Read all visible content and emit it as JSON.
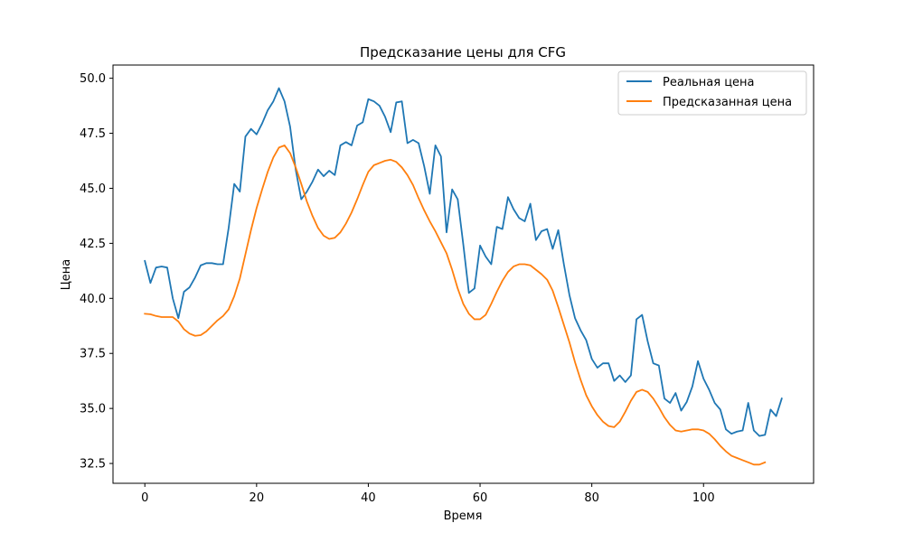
{
  "chart_data": {
    "type": "line",
    "title": "Предсказание цены для CFG",
    "xlabel": "Время",
    "ylabel": "Цена",
    "xlim": [
      -5.7,
      119.7
    ],
    "ylim": [
      31.6,
      50.6
    ],
    "xticks": [
      0,
      20,
      40,
      60,
      80,
      100
    ],
    "xtick_labels": [
      "0",
      "20",
      "40",
      "60",
      "80",
      "100"
    ],
    "yticks": [
      32.5,
      35.0,
      37.5,
      40.0,
      42.5,
      45.0,
      47.5,
      50.0
    ],
    "ytick_labels": [
      "32.5",
      "35.0",
      "37.5",
      "40.0",
      "42.5",
      "45.0",
      "47.5",
      "50.0"
    ],
    "grid": false,
    "legend_position": "top-right",
    "series": [
      {
        "name": "Реальная цена",
        "color": "#1f77b4",
        "values": [
          41.7,
          40.7,
          41.4,
          41.45,
          41.4,
          40.0,
          39.1,
          40.3,
          40.5,
          40.95,
          41.5,
          41.6,
          41.6,
          41.55,
          41.55,
          43.2,
          45.2,
          44.85,
          47.35,
          47.7,
          47.45,
          47.95,
          48.55,
          48.95,
          49.55,
          48.95,
          47.8,
          45.85,
          44.5,
          44.85,
          45.3,
          45.85,
          45.55,
          45.8,
          45.6,
          46.95,
          47.1,
          46.95,
          47.85,
          48.0,
          49.05,
          48.95,
          48.75,
          48.25,
          47.55,
          48.9,
          48.95,
          47.05,
          47.2,
          47.05,
          46.0,
          44.75,
          46.95,
          46.45,
          43.0,
          44.95,
          44.5,
          42.45,
          40.25,
          40.45,
          42.4,
          41.9,
          41.55,
          43.25,
          43.15,
          44.6,
          44.05,
          43.65,
          43.5,
          44.3,
          42.65,
          43.05,
          43.15,
          42.25,
          43.1,
          41.55,
          40.15,
          39.1,
          38.55,
          38.1,
          37.25,
          36.85,
          37.05,
          37.05,
          36.25,
          36.5,
          36.2,
          36.5,
          39.05,
          39.25,
          38.05,
          37.05,
          36.95,
          35.45,
          35.25,
          35.7,
          34.9,
          35.3,
          36.0,
          37.15,
          36.35,
          35.85,
          35.25,
          34.95,
          34.05,
          33.85,
          33.95,
          34.0,
          35.25,
          34.0,
          33.75,
          33.8,
          34.95,
          34.65,
          35.45
        ]
      },
      {
        "name": "Предсказанная цена",
        "color": "#ff7f0e",
        "values": [
          39.3,
          39.28,
          39.2,
          39.15,
          39.15,
          39.15,
          38.95,
          38.6,
          38.4,
          38.3,
          38.33,
          38.5,
          38.75,
          39.0,
          39.2,
          39.5,
          40.1,
          40.9,
          42.0,
          43.1,
          44.1,
          44.95,
          45.75,
          46.4,
          46.85,
          46.95,
          46.6,
          45.95,
          45.2,
          44.4,
          43.75,
          43.2,
          42.85,
          42.7,
          42.75,
          43.0,
          43.4,
          43.9,
          44.5,
          45.15,
          45.75,
          46.05,
          46.15,
          46.25,
          46.3,
          46.2,
          45.95,
          45.6,
          45.15,
          44.55,
          44.0,
          43.5,
          43.05,
          42.55,
          42.05,
          41.3,
          40.45,
          39.75,
          39.3,
          39.05,
          39.05,
          39.25,
          39.75,
          40.3,
          40.8,
          41.2,
          41.45,
          41.55,
          41.55,
          41.5,
          41.3,
          41.1,
          40.85,
          40.35,
          39.6,
          38.8,
          38.0,
          37.1,
          36.3,
          35.6,
          35.1,
          34.7,
          34.4,
          34.2,
          34.15,
          34.4,
          34.85,
          35.35,
          35.75,
          35.85,
          35.75,
          35.45,
          35.05,
          34.6,
          34.25,
          34.0,
          33.95,
          34.0,
          34.05,
          34.05,
          34.0,
          33.85,
          33.6,
          33.3,
          33.05,
          32.85,
          32.75,
          32.65,
          32.55,
          32.45,
          32.45,
          32.55
        ]
      }
    ]
  }
}
